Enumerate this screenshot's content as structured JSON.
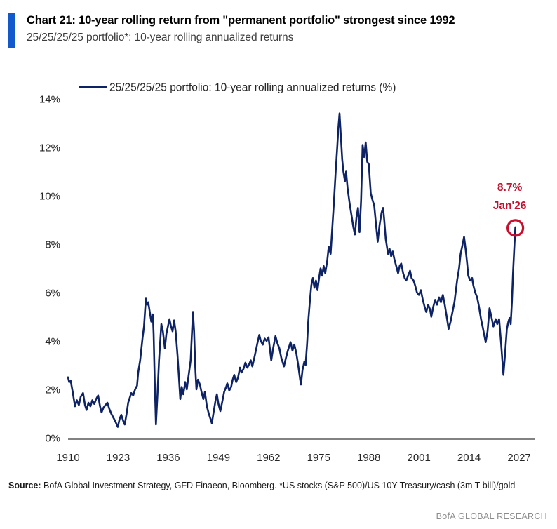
{
  "chart_data": {
    "type": "line",
    "title": "Chart 21: 10-year rolling return from \"permanent portfolio\" strongest since 1992",
    "subtitle": "25/25/25/25 portfolio*: 10-year rolling annualized returns",
    "legend": "25/25/25/25 portfolio: 10-year rolling annualized returns (%)",
    "xlabel": "",
    "ylabel": "",
    "line_color": "#0d2365",
    "grid": false,
    "legend_position": "top-left",
    "xlim": [
      1910,
      2027
    ],
    "ylim": [
      0,
      14
    ],
    "x_ticks": [
      {
        "value": 1910,
        "label": "1910"
      },
      {
        "value": 1923,
        "label": "1923"
      },
      {
        "value": 1936,
        "label": "1936"
      },
      {
        "value": 1949,
        "label": "1949"
      },
      {
        "value": 1962,
        "label": "1962"
      },
      {
        "value": 1975,
        "label": "1975"
      },
      {
        "value": 1988,
        "label": "1988"
      },
      {
        "value": 2001,
        "label": "2001"
      },
      {
        "value": 2014,
        "label": "2014"
      },
      {
        "value": 2027,
        "label": "2027"
      }
    ],
    "y_ticks": [
      {
        "value": 0,
        "label": "0%"
      },
      {
        "value": 2,
        "label": "2%"
      },
      {
        "value": 4,
        "label": "4%"
      },
      {
        "value": 6,
        "label": "6%"
      },
      {
        "value": 8,
        "label": "8%"
      },
      {
        "value": 10,
        "label": "10%"
      },
      {
        "value": 12,
        "label": "12%"
      },
      {
        "value": 14,
        "label": "14%"
      }
    ],
    "annotation": {
      "value_label": "8.7%",
      "date_label": "Jan'26",
      "x": 2026.0,
      "y": 8.7,
      "color": "#c8102e"
    },
    "series": [
      {
        "name": "25/25/25/25 portfolio: 10-year rolling annualized returns (%)",
        "points": [
          [
            1910,
            2.5
          ],
          [
            1910.3,
            2.3
          ],
          [
            1910.7,
            2.35
          ],
          [
            1911.2,
            1.9
          ],
          [
            1911.8,
            1.3
          ],
          [
            1912.3,
            1.55
          ],
          [
            1912.8,
            1.35
          ],
          [
            1913.3,
            1.7
          ],
          [
            1913.9,
            1.85
          ],
          [
            1914.4,
            1.35
          ],
          [
            1914.8,
            1.15
          ],
          [
            1915.3,
            1.45
          ],
          [
            1915.8,
            1.3
          ],
          [
            1916.3,
            1.55
          ],
          [
            1916.8,
            1.4
          ],
          [
            1917.3,
            1.6
          ],
          [
            1917.8,
            1.75
          ],
          [
            1918.3,
            1.3
          ],
          [
            1918.7,
            1.05
          ],
          [
            1919.2,
            1.25
          ],
          [
            1919.7,
            1.35
          ],
          [
            1920.2,
            1.45
          ],
          [
            1920.7,
            1.2
          ],
          [
            1921.2,
            1
          ],
          [
            1921.7,
            0.85
          ],
          [
            1922.2,
            0.7
          ],
          [
            1922.9,
            0.45
          ],
          [
            1923.4,
            0.8
          ],
          [
            1923.8,
            0.95
          ],
          [
            1924.3,
            0.7
          ],
          [
            1924.7,
            0.55
          ],
          [
            1925.2,
            1
          ],
          [
            1925.6,
            1.45
          ],
          [
            1926.1,
            1.7
          ],
          [
            1926.4,
            1.85
          ],
          [
            1926.9,
            1.75
          ],
          [
            1927.4,
            2
          ],
          [
            1927.9,
            2.15
          ],
          [
            1928.2,
            2.7
          ],
          [
            1928.7,
            3.2
          ],
          [
            1929.3,
            4.1
          ],
          [
            1929.7,
            4.6
          ],
          [
            1930,
            5.3
          ],
          [
            1930.2,
            5.75
          ],
          [
            1930.5,
            5.5
          ],
          [
            1930.8,
            5.6
          ],
          [
            1931.2,
            5.2
          ],
          [
            1931.6,
            4.8
          ],
          [
            1932,
            5.1
          ],
          [
            1932.2,
            4.3
          ],
          [
            1932.5,
            2.2
          ],
          [
            1932.8,
            0.55
          ],
          [
            1933.2,
            1.8
          ],
          [
            1933.6,
            3.2
          ],
          [
            1934.2,
            4.7
          ],
          [
            1934.6,
            4.4
          ],
          [
            1935.1,
            3.7
          ],
          [
            1935.5,
            4.3
          ],
          [
            1935.9,
            4.6
          ],
          [
            1936.3,
            4.9
          ],
          [
            1936.7,
            4.6
          ],
          [
            1937.1,
            4.4
          ],
          [
            1937.5,
            4.85
          ],
          [
            1937.9,
            4.4
          ],
          [
            1938.4,
            3.4
          ],
          [
            1938.8,
            2.4
          ],
          [
            1939.1,
            1.6
          ],
          [
            1939.5,
            2.1
          ],
          [
            1939.9,
            1.8
          ],
          [
            1940.4,
            2.3
          ],
          [
            1940.8,
            2
          ],
          [
            1941.3,
            2.6
          ],
          [
            1941.8,
            3.2
          ],
          [
            1942.1,
            4.2
          ],
          [
            1942.4,
            5.2
          ],
          [
            1942.7,
            4.4
          ],
          [
            1943,
            2.9
          ],
          [
            1943.3,
            2
          ],
          [
            1943.7,
            2.4
          ],
          [
            1944.2,
            2.2
          ],
          [
            1944.6,
            1.9
          ],
          [
            1945.1,
            1.6
          ],
          [
            1945.5,
            1.9
          ],
          [
            1946,
            1.3
          ],
          [
            1946.5,
            1
          ],
          [
            1947,
            0.75
          ],
          [
            1947.3,
            0.6
          ],
          [
            1947.7,
            1
          ],
          [
            1948.2,
            1.5
          ],
          [
            1948.6,
            1.8
          ],
          [
            1949,
            1.4
          ],
          [
            1949.5,
            1.1
          ],
          [
            1950,
            1.5
          ],
          [
            1950.5,
            1.9
          ],
          [
            1951,
            2.1
          ],
          [
            1951.3,
            2.25
          ],
          [
            1951.8,
            1.95
          ],
          [
            1952.3,
            2.1
          ],
          [
            1952.7,
            2.4
          ],
          [
            1953.1,
            2.6
          ],
          [
            1953.6,
            2.3
          ],
          [
            1954.1,
            2.5
          ],
          [
            1954.6,
            2.9
          ],
          [
            1955,
            2.7
          ],
          [
            1955.5,
            2.85
          ],
          [
            1956,
            3.1
          ],
          [
            1956.5,
            2.9
          ],
          [
            1957,
            3.05
          ],
          [
            1957.4,
            3.2
          ],
          [
            1957.8,
            2.95
          ],
          [
            1958.3,
            3.3
          ],
          [
            1958.7,
            3.6
          ],
          [
            1959.1,
            3.9
          ],
          [
            1959.6,
            4.25
          ],
          [
            1960,
            4
          ],
          [
            1960.5,
            3.85
          ],
          [
            1961,
            4.1
          ],
          [
            1961.5,
            4
          ],
          [
            1962,
            4.15
          ],
          [
            1962.7,
            3.2
          ],
          [
            1963.2,
            3.7
          ],
          [
            1963.8,
            4.2
          ],
          [
            1964.3,
            3.9
          ],
          [
            1964.8,
            3.7
          ],
          [
            1965.3,
            3.3
          ],
          [
            1966,
            2.95
          ],
          [
            1966.5,
            3.3
          ],
          [
            1967,
            3.6
          ],
          [
            1967.7,
            3.95
          ],
          [
            1968.2,
            3.6
          ],
          [
            1968.7,
            3.85
          ],
          [
            1969.2,
            3.5
          ],
          [
            1969.7,
            3
          ],
          [
            1970.2,
            2.4
          ],
          [
            1970.4,
            2.2
          ],
          [
            1970.8,
            2.8
          ],
          [
            1971.3,
            3.15
          ],
          [
            1971.6,
            3
          ],
          [
            1972,
            3.9
          ],
          [
            1972.3,
            4.8
          ],
          [
            1972.7,
            5.6
          ],
          [
            1973.1,
            6.3
          ],
          [
            1973.5,
            6.6
          ],
          [
            1973.9,
            6.2
          ],
          [
            1974.3,
            6.5
          ],
          [
            1974.7,
            6.1
          ],
          [
            1975.1,
            6.6
          ],
          [
            1975.5,
            7
          ],
          [
            1975.9,
            6.7
          ],
          [
            1976.3,
            7.1
          ],
          [
            1976.7,
            6.8
          ],
          [
            1977.2,
            7.3
          ],
          [
            1977.6,
            7.9
          ],
          [
            1978.1,
            7.6
          ],
          [
            1978.5,
            8.6
          ],
          [
            1978.9,
            9.6
          ],
          [
            1979.4,
            11
          ],
          [
            1979.8,
            12
          ],
          [
            1980.1,
            12.8
          ],
          [
            1980.4,
            13.4
          ],
          [
            1980.7,
            12.6
          ],
          [
            1981.1,
            11.5
          ],
          [
            1981.4,
            11
          ],
          [
            1981.8,
            10.6
          ],
          [
            1982.1,
            11
          ],
          [
            1982.5,
            10.3
          ],
          [
            1983,
            9.7
          ],
          [
            1983.5,
            9.2
          ],
          [
            1984,
            8.7
          ],
          [
            1984.4,
            8.4
          ],
          [
            1984.8,
            9.1
          ],
          [
            1985.2,
            9.5
          ],
          [
            1985.6,
            8.5
          ],
          [
            1986,
            9.8
          ],
          [
            1986.4,
            12.1
          ],
          [
            1986.8,
            11.6
          ],
          [
            1987.2,
            12.2
          ],
          [
            1987.6,
            11.4
          ],
          [
            1988,
            11.3
          ],
          [
            1988.5,
            10.1
          ],
          [
            1989,
            9.8
          ],
          [
            1989.4,
            9.6
          ],
          [
            1990,
            8.6
          ],
          [
            1990.3,
            8.1
          ],
          [
            1990.8,
            8.8
          ],
          [
            1991.3,
            9.3
          ],
          [
            1991.7,
            9.5
          ],
          [
            1992,
            9
          ],
          [
            1992.4,
            8.2
          ],
          [
            1993,
            7.6
          ],
          [
            1993.4,
            7.8
          ],
          [
            1993.8,
            7.5
          ],
          [
            1994.2,
            7.7
          ],
          [
            1994.6,
            7.4
          ],
          [
            1995.1,
            7.1
          ],
          [
            1995.6,
            6.8
          ],
          [
            1996,
            7.1
          ],
          [
            1996.4,
            7.2
          ],
          [
            1996.9,
            6.8
          ],
          [
            1997.3,
            6.6
          ],
          [
            1997.7,
            6.5
          ],
          [
            1998.2,
            6.7
          ],
          [
            1998.7,
            6.9
          ],
          [
            1999.1,
            6.6
          ],
          [
            1999.6,
            6.5
          ],
          [
            2000,
            6.3
          ],
          [
            2000.5,
            6
          ],
          [
            2001,
            5.9
          ],
          [
            2001.5,
            6.1
          ],
          [
            2002,
            5.7
          ],
          [
            2002.5,
            5.4
          ],
          [
            2002.9,
            5.2
          ],
          [
            2003.4,
            5.5
          ],
          [
            2003.9,
            5.3
          ],
          [
            2004.2,
            5
          ],
          [
            2004.7,
            5.4
          ],
          [
            2005.2,
            5.7
          ],
          [
            2005.7,
            5.5
          ],
          [
            2006.2,
            5.8
          ],
          [
            2006.7,
            5.6
          ],
          [
            2007.2,
            5.9
          ],
          [
            2007.7,
            5.5
          ],
          [
            2008.2,
            5
          ],
          [
            2008.7,
            4.5
          ],
          [
            2009.2,
            4.8
          ],
          [
            2009.7,
            5.2
          ],
          [
            2010.2,
            5.6
          ],
          [
            2010.9,
            6.5
          ],
          [
            2011.4,
            7
          ],
          [
            2011.8,
            7.6
          ],
          [
            2012.2,
            7.9
          ],
          [
            2012.7,
            8.3
          ],
          [
            2013.1,
            7.8
          ],
          [
            2013.5,
            7.2
          ],
          [
            2013.8,
            6.7
          ],
          [
            2014.3,
            6.5
          ],
          [
            2014.8,
            6.6
          ],
          [
            2015.1,
            6.3
          ],
          [
            2015.6,
            6
          ],
          [
            2016.1,
            5.8
          ],
          [
            2016.6,
            5.4
          ],
          [
            2017.1,
            4.9
          ],
          [
            2017.5,
            4.6
          ],
          [
            2018,
            4.2
          ],
          [
            2018.3,
            3.95
          ],
          [
            2018.8,
            4.4
          ],
          [
            2019.3,
            5.35
          ],
          [
            2019.8,
            5
          ],
          [
            2020.3,
            4.6
          ],
          [
            2020.9,
            4.9
          ],
          [
            2021.3,
            4.7
          ],
          [
            2021.8,
            4.9
          ],
          [
            2022.3,
            3.9
          ],
          [
            2022.9,
            2.6
          ],
          [
            2023.3,
            3.4
          ],
          [
            2023.8,
            4.5
          ],
          [
            2024.2,
            4.8
          ],
          [
            2024.5,
            4.95
          ],
          [
            2024.8,
            4.7
          ],
          [
            2025.1,
            5.6
          ],
          [
            2025.4,
            6.8
          ],
          [
            2025.7,
            7.8
          ],
          [
            2026,
            8.7
          ]
        ]
      }
    ]
  },
  "footer": {
    "source_label": "Source:",
    "source_text": "BofA Global Investment Strategy, GFD Finaeon, Bloomberg. *US stocks (S&P 500)/US 10Y Treasury/cash (3m T-bill)/gold",
    "brand": "BofA GLOBAL RESEARCH"
  },
  "colors": {
    "accent_blue": "#1159cc",
    "line_navy": "#0d2365",
    "annotation_red": "#c8102e",
    "axis_gray": "#595959",
    "tick_text": "#262626",
    "brand_gray": "#8c8c8c"
  }
}
